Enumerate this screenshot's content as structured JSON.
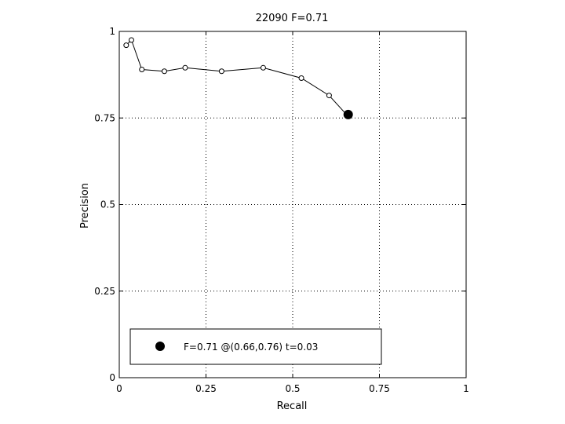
{
  "chart_data": {
    "type": "scatter",
    "title": "22090 F=0.71",
    "xlabel": "Recall",
    "ylabel": "Precision",
    "xlim": [
      0,
      1
    ],
    "ylim": [
      0,
      1
    ],
    "xticks": [
      0,
      0.25,
      0.5,
      0.75,
      1
    ],
    "yticks": [
      0,
      0.25,
      0.5,
      0.75,
      1
    ],
    "xtick_labels": [
      "0",
      "0.25",
      "0.5",
      "0.75",
      "1"
    ],
    "ytick_labels": [
      "0",
      "0.25",
      "0.5",
      "0.75",
      "1"
    ],
    "grid": true,
    "series": [
      {
        "style": "line-with-open-circles",
        "x": [
          0.02,
          0.035,
          0.065,
          0.13,
          0.19,
          0.295,
          0.415,
          0.525,
          0.605,
          0.655
        ],
        "y": [
          0.96,
          0.975,
          0.89,
          0.885,
          0.895,
          0.885,
          0.895,
          0.865,
          0.815,
          0.76
        ]
      },
      {
        "name": "F=0.71 @(0.66,0.76) t=0.03",
        "style": "filled-circle",
        "x": [
          0.66
        ],
        "y": [
          0.76
        ]
      }
    ],
    "legend": {
      "placement": "bottom-left",
      "entries": [
        "F=0.71 @(0.66,0.76) t=0.03"
      ]
    }
  }
}
